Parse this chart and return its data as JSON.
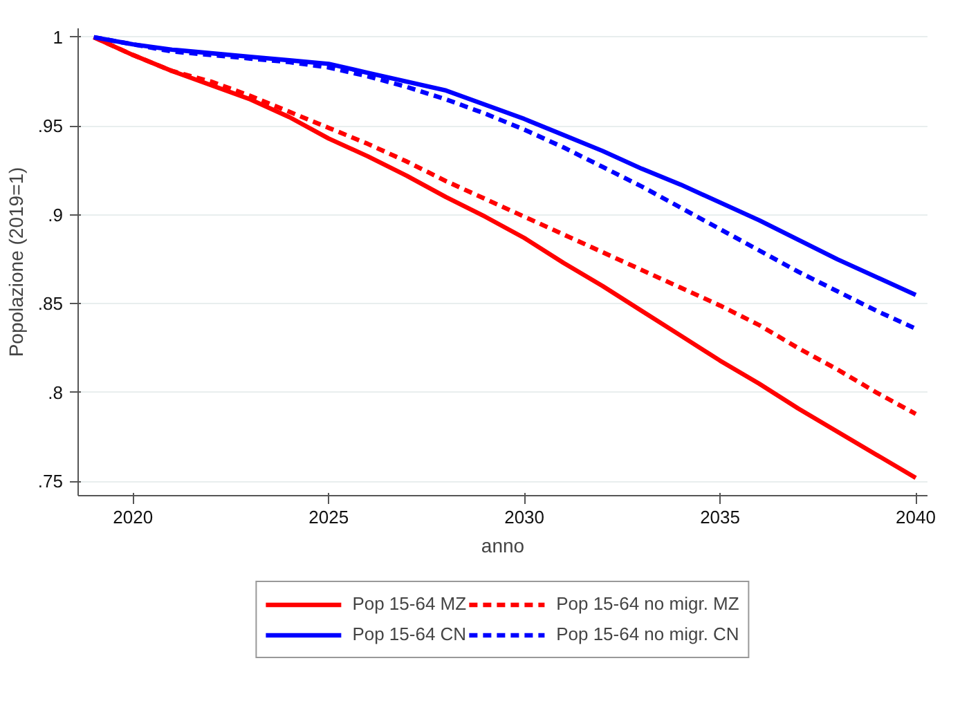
{
  "chart_data": {
    "type": "line",
    "xlabel": "anno",
    "ylabel": "Popolazione (2019=1)",
    "x": [
      2019,
      2020,
      2021,
      2022,
      2023,
      2024,
      2025,
      2026,
      2027,
      2028,
      2029,
      2030,
      2031,
      2032,
      2033,
      2034,
      2035,
      2036,
      2037,
      2038,
      2039,
      2040
    ],
    "series": [
      {
        "name": "Pop 15-64 MZ",
        "color": "#ff0000",
        "line_style": "solid",
        "values": [
          1,
          0.99,
          0.981,
          0.973,
          0.965,
          0.955,
          0.943,
          0.933,
          0.922,
          0.91,
          0.899,
          0.887,
          0.873,
          0.86,
          0.846,
          0.832,
          0.818,
          0.805,
          0.791,
          0.778,
          0.765,
          0.752
        ]
      },
      {
        "name": "Pop 15-64 CN",
        "color": "#0000ff",
        "line_style": "solid",
        "values": [
          1,
          0.996,
          0.993,
          0.991,
          0.989,
          0.987,
          0.985,
          0.98,
          0.975,
          0.97,
          0.962,
          0.954,
          0.945,
          0.936,
          0.926,
          0.917,
          0.907,
          0.897,
          0.886,
          0.875,
          0.865,
          0.855
        ]
      },
      {
        "name": "Pop 15-64 no migr. MZ",
        "color": "#ff0000",
        "line_style": "dashed",
        "values": [
          1,
          0.99,
          0.981,
          0.975,
          0.967,
          0.958,
          0.949,
          0.94,
          0.93,
          0.919,
          0.909,
          0.899,
          0.889,
          0.879,
          0.869,
          0.859,
          0.849,
          0.838,
          0.825,
          0.813,
          0.8,
          0.788
        ]
      },
      {
        "name": "Pop 15-64 no migr. CN",
        "color": "#0000ff",
        "line_style": "dashed",
        "values": [
          1,
          0.996,
          0.992,
          0.99,
          0.988,
          0.986,
          0.983,
          0.978,
          0.972,
          0.965,
          0.957,
          0.948,
          0.938,
          0.927,
          0.916,
          0.904,
          0.892,
          0.88,
          0.868,
          0.857,
          0.846,
          0.836
        ]
      }
    ],
    "xlim": [
      2018.6,
      2040.3
    ],
    "xticks": [
      2020,
      2025,
      2030,
      2035,
      2040
    ],
    "ylim": [
      0.742,
      1.005
    ],
    "yticks": [
      {
        "value": 0.75,
        "label": ".75"
      },
      {
        "value": 0.8,
        "label": ".8"
      },
      {
        "value": 0.85,
        "label": ".85"
      },
      {
        "value": 0.9,
        "label": ".9"
      },
      {
        "value": 0.95,
        "label": ".95"
      },
      1
    ],
    "grid": "y",
    "legend": "bottom",
    "marker": "none"
  }
}
